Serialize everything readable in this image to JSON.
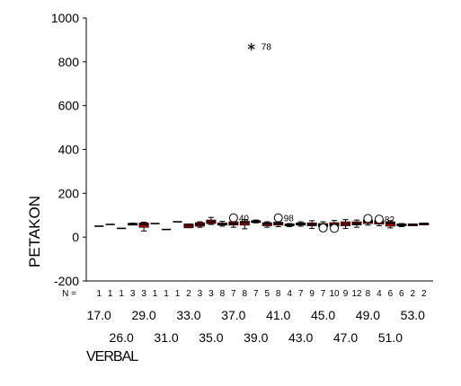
{
  "chart_data": {
    "type": "boxplot",
    "title": "",
    "xlabel": "VERBAL",
    "ylabel": "PETAKON",
    "ylim": [
      -200,
      1000
    ],
    "yticks": [
      -200,
      0,
      200,
      400,
      600,
      800,
      1000
    ],
    "grid": false,
    "n_label": "N =",
    "box_color": "#cc0000",
    "groups": [
      {
        "verbal": "17.0",
        "n": "1",
        "median": 50
      },
      {
        "verbal": "",
        "n": "1",
        "median": 58
      },
      {
        "verbal": "26.0",
        "n": "1",
        "median": 40
      },
      {
        "verbal": "",
        "n": "3",
        "median": 60,
        "q1": 57,
        "q3": 63,
        "whisker_low": 56,
        "whisker_high": 64
      },
      {
        "verbal": "29.0",
        "n": "3",
        "median": 58,
        "q1": 45,
        "q3": 65,
        "whisker_low": 28,
        "whisker_high": 68
      },
      {
        "verbal": "",
        "n": "1",
        "median": 62
      },
      {
        "verbal": "31.0",
        "n": "1",
        "median": 35
      },
      {
        "verbal": "",
        "n": "1",
        "median": 70
      },
      {
        "verbal": "33.0",
        "n": "2",
        "median": 52,
        "q1": 43,
        "q3": 60,
        "whisker_low": 43,
        "whisker_high": 60
      },
      {
        "verbal": "",
        "n": "3",
        "median": 58,
        "q1": 50,
        "q3": 66,
        "whisker_low": 45,
        "whisker_high": 70
      },
      {
        "verbal": "35.0",
        "n": "3",
        "median": 70,
        "q1": 62,
        "q3": 78,
        "whisker_low": 58,
        "whisker_high": 90
      },
      {
        "verbal": "",
        "n": "8",
        "median": 58,
        "q1": 55,
        "q3": 65,
        "whisker_low": 50,
        "whisker_high": 72
      },
      {
        "verbal": "37.0",
        "n": "7",
        "median": 62,
        "q1": 55,
        "q3": 70,
        "whisker_low": 45,
        "whisker_high": 78,
        "outliers": [
          {
            "value": 88,
            "label": "40"
          }
        ]
      },
      {
        "verbal": "",
        "n": "8",
        "median": 65,
        "q1": 55,
        "q3": 72,
        "whisker_low": 38,
        "whisker_high": 80
      },
      {
        "verbal": "39.0",
        "n": "7",
        "median": 72,
        "q1": 68,
        "q3": 75,
        "whisker_low": 65,
        "whisker_high": 78,
        "outliers": [
          {
            "value": 870,
            "label": "78",
            "type": "extreme"
          }
        ]
      },
      {
        "verbal": "",
        "n": "5",
        "median": 60,
        "q1": 52,
        "q3": 66,
        "whisker_low": 45,
        "whisker_high": 70
      },
      {
        "verbal": "41.0",
        "n": "8",
        "median": 62,
        "q1": 55,
        "q3": 68,
        "whisker_low": 48,
        "whisker_high": 75,
        "outliers": [
          {
            "value": 88,
            "label": "98"
          }
        ]
      },
      {
        "verbal": "",
        "n": "4",
        "median": 55,
        "q1": 52,
        "q3": 60,
        "whisker_low": 48,
        "whisker_high": 62
      },
      {
        "verbal": "43.0",
        "n": "7",
        "median": 60,
        "q1": 55,
        "q3": 65,
        "whisker_low": 50,
        "whisker_high": 70
      },
      {
        "verbal": "",
        "n": "9",
        "median": 58,
        "q1": 52,
        "q3": 65,
        "whisker_low": 40,
        "whisker_high": 75
      },
      {
        "verbal": "45.0",
        "n": "7",
        "median": 55,
        "q1": 48,
        "q3": 62,
        "whisker_low": 40,
        "whisker_high": 70,
        "outliers": [
          {
            "value": 42,
            "label": ""
          }
        ]
      },
      {
        "verbal": "",
        "n": "10",
        "median": 58,
        "q1": 50,
        "q3": 66,
        "whisker_low": 38,
        "whisker_high": 76,
        "outliers": [
          {
            "value": 40,
            "label": ""
          }
        ]
      },
      {
        "verbal": "47.0",
        "n": "9",
        "median": 60,
        "q1": 52,
        "q3": 70,
        "whisker_low": 40,
        "whisker_high": 80
      },
      {
        "verbal": "",
        "n": "12",
        "median": 62,
        "q1": 56,
        "q3": 70,
        "whisker_low": 45,
        "whisker_high": 78
      },
      {
        "verbal": "49.0",
        "n": "8",
        "median": 70,
        "q1": 62,
        "q3": 78,
        "whisker_low": 55,
        "whisker_high": 85,
        "outliers": [
          {
            "value": 85,
            "label": ""
          }
        ]
      },
      {
        "verbal": "",
        "n": "4",
        "median": 68,
        "q1": 60,
        "q3": 75,
        "whisker_low": 52,
        "whisker_high": 82,
        "outliers": [
          {
            "value": 82,
            "label": "82"
          }
        ]
      },
      {
        "verbal": "51.0",
        "n": "6",
        "median": 62,
        "q1": 50,
        "q3": 70,
        "whisker_low": 42,
        "whisker_high": 75
      },
      {
        "verbal": "",
        "n": "6",
        "median": 55,
        "q1": 52,
        "q3": 60,
        "whisker_low": 48,
        "whisker_high": 62
      },
      {
        "verbal": "53.0",
        "n": "2",
        "median": 58,
        "q1": 56,
        "q3": 60,
        "whisker_low": 56,
        "whisker_high": 60
      },
      {
        "verbal": "",
        "n": "2",
        "median": 62,
        "q1": 60,
        "q3": 64,
        "whisker_low": 60,
        "whisker_high": 64
      }
    ]
  }
}
